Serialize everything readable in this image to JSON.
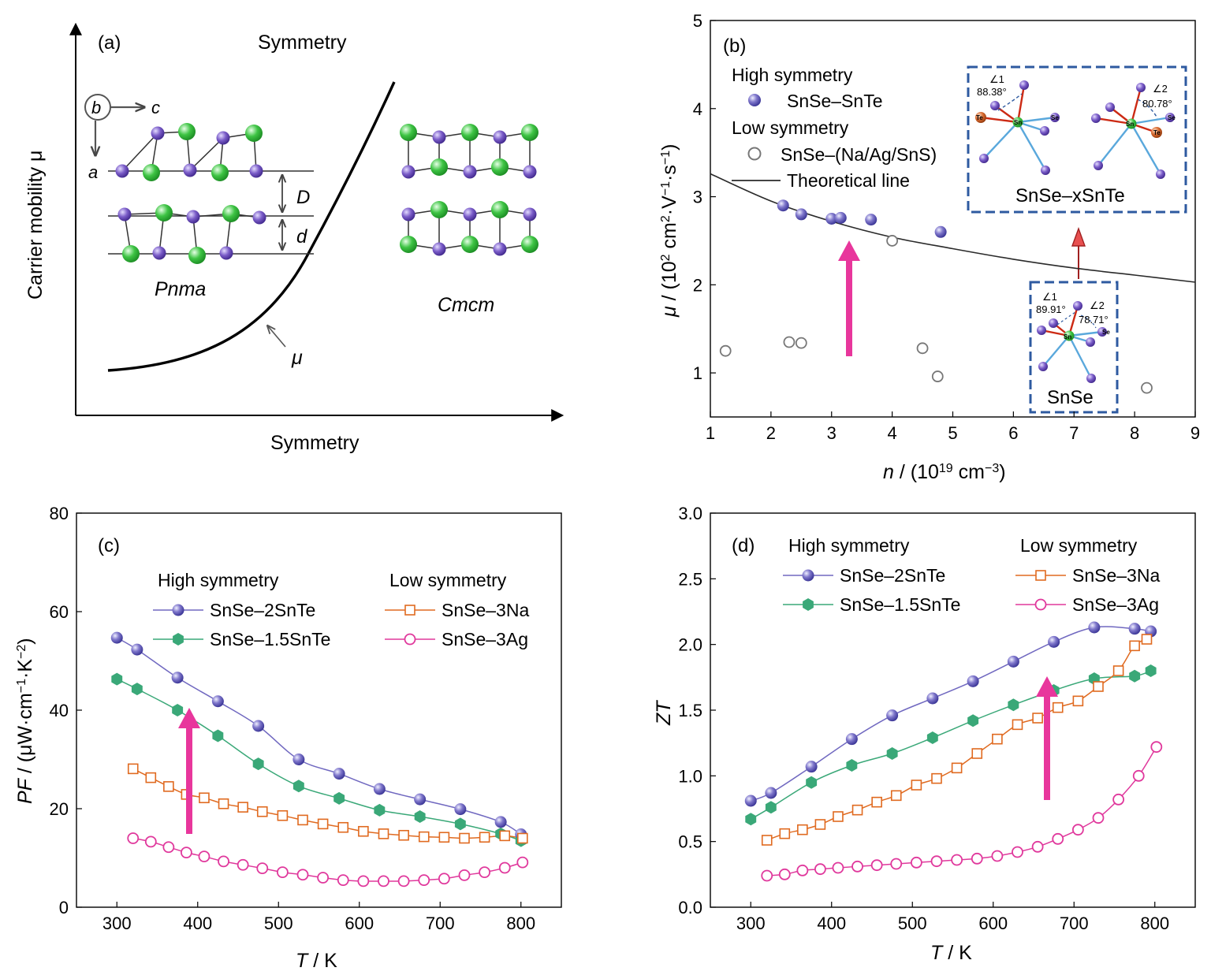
{
  "colors": {
    "high": "#7068c0",
    "high_light": "#c8c8f4",
    "high_dark": "#3c3494",
    "hex": "#3aa878",
    "low_na": "#e06a20",
    "low_ag": "#e0389c",
    "open_gray": "#777777",
    "theory": "#2a2a2a",
    "arrow": "#e8369c",
    "inset_border": "#2e5aa0",
    "inset_text": "#3d6aae",
    "sn": "#3ac040",
    "se": "#7a5cc8",
    "te": "#d86a30",
    "bond_red": "#cc2a14",
    "bond_blue": "#5aa8dc"
  },
  "panel_a": {
    "label": "(a)",
    "ylabel": "Carrier mobility μ",
    "xlabel": "Symmetry",
    "top_text": "Symmetry",
    "axis_b": "b",
    "axis_c": "c",
    "axis_a": "a",
    "label_D": "D",
    "label_d": "d",
    "pnma": "Pnma",
    "cmcm": "Cmcm",
    "mu": "μ",
    "curve_icon": "exponential-curve",
    "atom_green": "sn-atom-icon",
    "atom_purple": "se-atom-icon"
  },
  "panel_b": {
    "label": "(b)",
    "inset_top_title": "SnSe–xSnTe",
    "inset_bottom_title": "SnSe",
    "inset_top": {
      "angle1": "∠1",
      "angle1_val": "88.38°",
      "angle2": "∠2",
      "angle2_val": "80.78°",
      "te": "Te",
      "sn": "Sn",
      "se": "Se"
    },
    "inset_bottom": {
      "angle1": "∠1",
      "angle1_val": "89.91°",
      "angle2": "∠2",
      "angle2_val": "78.71°",
      "sn": "Sn",
      "se": "Se"
    },
    "legend": {
      "high": "High symmetry",
      "high_series": "SnSe–SnTe",
      "low": "Low  symmetry",
      "low_series": "SnSe–(Na/Ag/SnS)",
      "theory": "Theoretical line"
    }
  },
  "panel_c": {
    "label": "(c)",
    "legend_high": "High symmetry",
    "legend_low": "Low symmetry"
  },
  "panel_d": {
    "label": "(d)",
    "legend_high": "High symmetry",
    "legend_low": "Low symmetry"
  },
  "chart_data": [
    {
      "type": "scatter",
      "panel": "b",
      "xlabel": "n / (10^19 cm^-3)",
      "ylabel": "μ / (10^2 cm^2·V^-1·s^-1)",
      "xlim": [
        1,
        9
      ],
      "ylim": [
        0.5,
        5
      ],
      "xticks": [
        1,
        2,
        3,
        4,
        5,
        6,
        7,
        8,
        9
      ],
      "yticks": [
        1,
        2,
        3,
        4,
        5
      ],
      "series": [
        {
          "name": "SnSe–SnTe",
          "marker": "filled-circle",
          "x": [
            2.2,
            2.5,
            3.0,
            3.15,
            3.65,
            4.8
          ],
          "y": [
            2.9,
            2.8,
            2.75,
            2.76,
            2.74,
            2.6
          ]
        },
        {
          "name": "SnSe–(Na/Ag/SnS)",
          "marker": "open-circle",
          "x": [
            1.25,
            2.3,
            2.5,
            4.0,
            4.5,
            4.75,
            8.2
          ],
          "y": [
            1.25,
            1.35,
            1.34,
            2.5,
            1.28,
            0.96,
            0.83
          ]
        },
        {
          "name": "Theoretical line",
          "marker": "line",
          "x": [
            1,
            2,
            3,
            4,
            5,
            6,
            7,
            8,
            9
          ],
          "y": [
            3.26,
            2.95,
            2.72,
            2.54,
            2.41,
            2.29,
            2.19,
            2.11,
            2.03
          ]
        }
      ]
    },
    {
      "type": "line",
      "panel": "c",
      "xlabel": "T / K",
      "ylabel": "PF / (μW·cm^-1·K^-2)",
      "xlim": [
        250,
        850
      ],
      "ylim": [
        0,
        80
      ],
      "xticks": [
        300,
        400,
        500,
        600,
        700,
        800
      ],
      "yticks": [
        0,
        20,
        40,
        60,
        80
      ],
      "series": [
        {
          "name": "SnSe–2SnTe",
          "marker": "sphere",
          "x": [
            300,
            325,
            375,
            425,
            475,
            525,
            575,
            625,
            675,
            725,
            775,
            800
          ],
          "y": [
            54.7,
            52.3,
            46.6,
            41.8,
            36.8,
            30.0,
            27.1,
            24.0,
            21.9,
            19.9,
            17.3,
            14.8
          ]
        },
        {
          "name": "SnSe–1.5SnTe",
          "marker": "hexagon",
          "x": [
            300,
            325,
            375,
            425,
            475,
            525,
            575,
            625,
            675,
            725,
            775,
            800
          ],
          "y": [
            46.3,
            44.3,
            40.0,
            34.8,
            29.1,
            24.6,
            22.1,
            19.7,
            18.4,
            16.9,
            14.9,
            13.5
          ]
        },
        {
          "name": "SnSe–3Na",
          "marker": "open-square",
          "x": [
            320,
            342,
            364,
            386,
            408,
            432,
            456,
            480,
            505,
            530,
            555,
            580,
            605,
            630,
            655,
            680,
            705,
            730,
            755,
            780,
            802
          ],
          "y": [
            28.1,
            26.3,
            24.5,
            22.9,
            22.2,
            21.0,
            20.3,
            19.4,
            18.6,
            17.7,
            16.9,
            16.2,
            15.4,
            14.9,
            14.6,
            14.3,
            14.2,
            14.0,
            14.2,
            14.5,
            14.0
          ]
        },
        {
          "name": "SnSe–3Ag",
          "marker": "open-circle",
          "x": [
            320,
            342,
            364,
            386,
            408,
            432,
            456,
            480,
            505,
            530,
            555,
            580,
            605,
            630,
            655,
            680,
            705,
            730,
            755,
            780,
            802
          ],
          "y": [
            14.0,
            13.3,
            12.2,
            11.1,
            10.3,
            9.3,
            8.6,
            7.9,
            7.1,
            6.6,
            6.0,
            5.5,
            5.3,
            5.3,
            5.3,
            5.5,
            5.8,
            6.5,
            7.1,
            8.0,
            9.1
          ]
        }
      ]
    },
    {
      "type": "line",
      "panel": "d",
      "xlabel": "T / K",
      "ylabel": "ZT",
      "xlim": [
        250,
        850
      ],
      "ylim": [
        0,
        3
      ],
      "xticks": [
        300,
        400,
        500,
        600,
        700,
        800
      ],
      "yticks": [
        0.0,
        0.5,
        1.0,
        1.5,
        2.0,
        2.5,
        3.0
      ],
      "series": [
        {
          "name": "SnSe–2SnTe",
          "marker": "sphere",
          "x": [
            300,
            325,
            375,
            425,
            475,
            525,
            575,
            625,
            675,
            725,
            775,
            795
          ],
          "y": [
            0.81,
            0.87,
            1.07,
            1.28,
            1.46,
            1.59,
            1.72,
            1.87,
            2.02,
            2.13,
            2.12,
            2.1
          ]
        },
        {
          "name": "SnSe–1.5SnTe",
          "marker": "hexagon",
          "x": [
            300,
            325,
            375,
            425,
            475,
            525,
            575,
            625,
            675,
            725,
            775,
            795
          ],
          "y": [
            0.67,
            0.76,
            0.95,
            1.08,
            1.17,
            1.29,
            1.42,
            1.54,
            1.65,
            1.74,
            1.76,
            1.8
          ]
        },
        {
          "name": "SnSe–3Na",
          "marker": "open-square",
          "x": [
            320,
            342,
            364,
            386,
            408,
            432,
            456,
            480,
            505,
            530,
            555,
            580,
            605,
            630,
            655,
            680,
            705,
            730,
            755,
            775,
            790
          ],
          "y": [
            0.51,
            0.56,
            0.59,
            0.63,
            0.69,
            0.74,
            0.8,
            0.85,
            0.93,
            0.98,
            1.06,
            1.17,
            1.28,
            1.39,
            1.44,
            1.52,
            1.57,
            1.68,
            1.8,
            1.99,
            2.04
          ]
        },
        {
          "name": "SnSe–3Ag",
          "marker": "open-circle",
          "x": [
            320,
            342,
            364,
            386,
            408,
            432,
            456,
            480,
            505,
            530,
            555,
            580,
            605,
            630,
            655,
            680,
            705,
            730,
            755,
            780,
            802
          ],
          "y": [
            0.24,
            0.25,
            0.28,
            0.29,
            0.3,
            0.31,
            0.32,
            0.33,
            0.34,
            0.35,
            0.36,
            0.37,
            0.39,
            0.42,
            0.46,
            0.52,
            0.59,
            0.68,
            0.82,
            1.0,
            1.22
          ]
        }
      ]
    }
  ]
}
